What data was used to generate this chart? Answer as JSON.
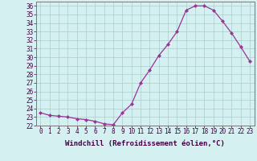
{
  "x": [
    0,
    1,
    2,
    3,
    4,
    5,
    6,
    7,
    8,
    9,
    10,
    11,
    12,
    13,
    14,
    15,
    16,
    17,
    18,
    19,
    20,
    21,
    22,
    23
  ],
  "y": [
    23.5,
    23.2,
    23.1,
    23.0,
    22.8,
    22.7,
    22.5,
    22.2,
    22.1,
    23.5,
    24.5,
    27.0,
    28.5,
    30.2,
    31.5,
    33.0,
    35.5,
    36.0,
    36.0,
    35.5,
    34.2,
    32.8,
    31.2,
    29.5
  ],
  "line_color": "#993399",
  "marker": "D",
  "marker_size": 2.5,
  "background_color": "#d5f0f0",
  "grid_color": "#aacccc",
  "xlabel": "Windchill (Refroidissement éolien,°C)",
  "ylim": [
    22,
    36.5
  ],
  "xlim": [
    -0.5,
    23.5
  ],
  "yticks": [
    22,
    23,
    24,
    25,
    26,
    27,
    28,
    29,
    30,
    31,
    32,
    33,
    34,
    35,
    36
  ],
  "xticks": [
    0,
    1,
    2,
    3,
    4,
    5,
    6,
    7,
    8,
    9,
    10,
    11,
    12,
    13,
    14,
    15,
    16,
    17,
    18,
    19,
    20,
    21,
    22,
    23
  ],
  "tick_fontsize": 5.5,
  "xlabel_fontsize": 6.5,
  "spine_color": "#777777"
}
